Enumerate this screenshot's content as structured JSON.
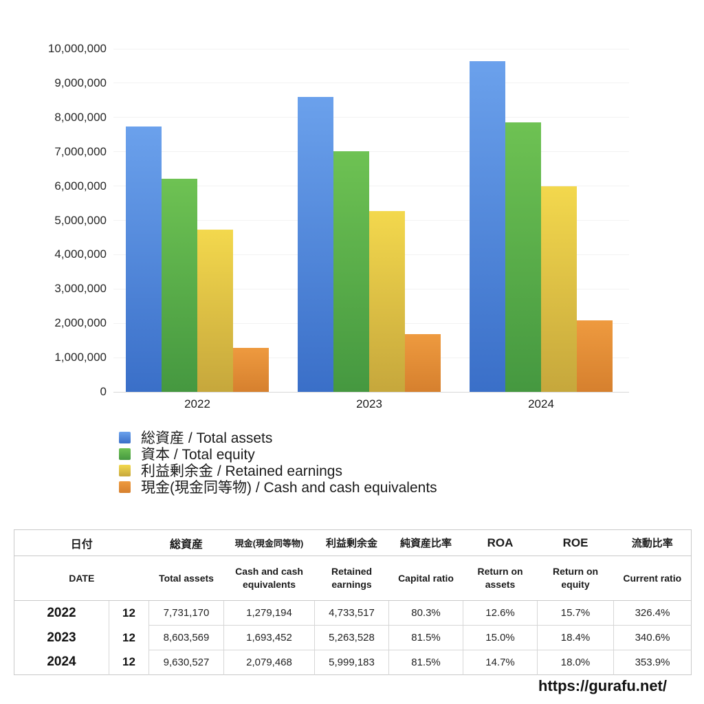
{
  "chart_data": {
    "type": "bar",
    "title": "",
    "categories": [
      "2022",
      "2023",
      "2024"
    ],
    "series": [
      {
        "key": "total-assets",
        "name": "総資産 / Total assets",
        "color_top": "#6BA1EC",
        "color_bottom": "#3A6FC8",
        "values": [
          7731170,
          8603569,
          9630527
        ]
      },
      {
        "key": "total-equity",
        "name": "資本 / Total equity",
        "color_top": "#6EC253",
        "color_bottom": "#459840",
        "values": [
          6208130,
          7011909,
          7848880
        ]
      },
      {
        "key": "retained-earnings",
        "name": "利益剰余金 / Retained earnings",
        "color_top": "#F3D84D",
        "color_bottom": "#C6A73C",
        "values": [
          4733517,
          5263528,
          5999183
        ]
      },
      {
        "key": "cash",
        "name": "現金(現金同等物) / Cash and cash equivalents",
        "color_top": "#EE9A3F",
        "color_bottom": "#D6802E",
        "values": [
          1279194,
          1693452,
          2079468
        ]
      }
    ],
    "ylim": [
      0,
      10000000
    ],
    "grid": true,
    "legend_position": "bottom-left",
    "yticks": [
      {
        "value": 10000000,
        "label": "10,000,000"
      },
      {
        "value": 9000000,
        "label": "9,000,000"
      },
      {
        "value": 8000000,
        "label": "8,000,000"
      },
      {
        "value": 7000000,
        "label": "7,000,000"
      },
      {
        "value": 6000000,
        "label": "6,000,000"
      },
      {
        "value": 5000000,
        "label": "5,000,000"
      },
      {
        "value": 4000000,
        "label": "4,000,000"
      },
      {
        "value": 3000000,
        "label": "3,000,000"
      },
      {
        "value": 2000000,
        "label": "2,000,000"
      },
      {
        "value": 1000000,
        "label": "1,000,000"
      },
      {
        "value": 0,
        "label": "0"
      }
    ]
  },
  "table": {
    "header_jp": [
      "日付",
      "総資産",
      "現金(現金同等物)",
      "利益剰余金",
      "純資産比率",
      "ROA",
      "ROE",
      "流動比率"
    ],
    "header_en": [
      "DATE",
      "Total assets",
      "Cash and cash equivalents",
      "Retained earnings",
      "Capital ratio",
      "Return on assets",
      "Return on equity",
      "Current ratio"
    ],
    "rows": [
      [
        "2022",
        "12",
        "7,731,170",
        "1,279,194",
        "4,733,517",
        "80.3%",
        "12.6%",
        "15.7%",
        "326.4%"
      ],
      [
        "2023",
        "12",
        "8,603,569",
        "1,693,452",
        "5,263,528",
        "81.5%",
        "15.0%",
        "18.4%",
        "340.6%"
      ],
      [
        "2024",
        "12",
        "9,630,527",
        "2,079,468",
        "5,999,183",
        "81.5%",
        "14.7%",
        "18.0%",
        "353.9%"
      ]
    ]
  },
  "footer": {
    "url": "https://gurafu.net/"
  }
}
